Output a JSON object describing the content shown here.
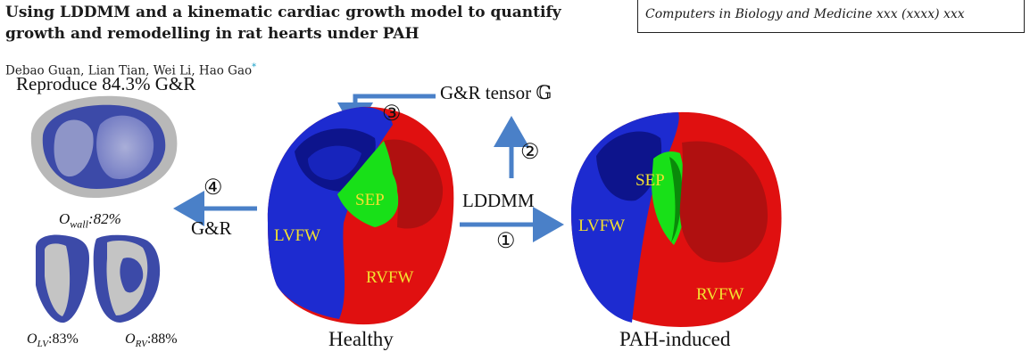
{
  "header": {
    "title_line1": "Using LDDMM and a kinematic cardiac growth model to quantify",
    "title_line2": "growth and remodelling in rat hearts under PAH",
    "journal": "Computers in Biology and Medicine xxx (xxxx) xxx",
    "authors": "Debao Guan, Lian Tian, Wei Li, Hao Gao",
    "author_mark": "*"
  },
  "figure": {
    "reproduce_label": "Reproduce 84.3% G&R",
    "tensor_label": "G&R tensor 𝔾",
    "step1": "①",
    "step2": "②",
    "step3": "③",
    "step4": "④",
    "lddmm_label": "LDDMM",
    "gr_label": "G&R",
    "o_wall_sym": "O",
    "o_wall_sub": "wall",
    "o_wall_val": ":82%",
    "o_lv_sym": "O",
    "o_lv_sub": "LV",
    "o_lv_val": ":83%",
    "o_rv_sym": "O",
    "o_rv_sub": "RV",
    "o_rv_val": ":88%",
    "healthy": {
      "caption": "Healthy",
      "sep": "SEP",
      "lvfw": "LVFW",
      "rvfw": "RVFW"
    },
    "pah": {
      "caption": "PAH-induced",
      "sep": "SEP",
      "lvfw": "LVFW",
      "rvfw": "RVFW"
    },
    "colors": {
      "lv_blue": "#1d2bd0",
      "rv_red": "#e01010",
      "sep_green": "#18e018",
      "arrow_blue": "#4a80c8",
      "label_yellow": "#f2e030",
      "model_gray": "#b8b8b8",
      "model_navy": "#3c4aa8"
    }
  }
}
